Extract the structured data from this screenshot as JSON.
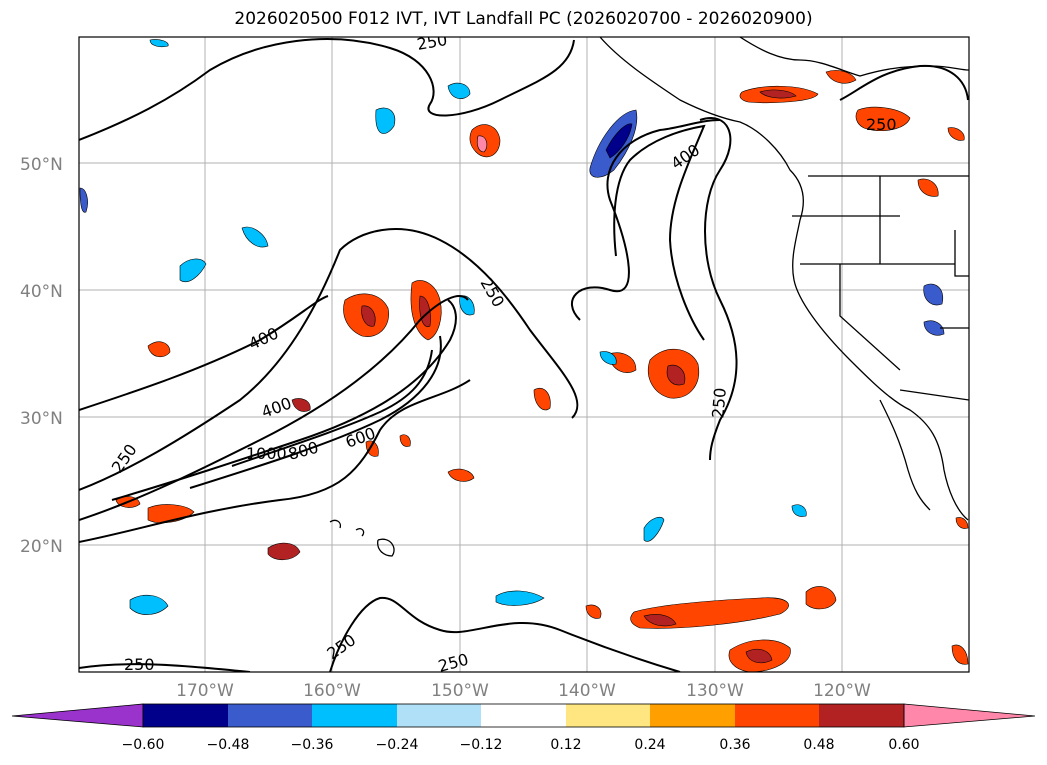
{
  "title": "2026020500 F012 IVT, IVT Landfall PC (2026020700 - 2026020900)",
  "map": {
    "lat_ticks": [
      "50°N",
      "40°N",
      "30°N",
      "20°N"
    ],
    "lon_ticks": [
      "170°W",
      "160°W",
      "150°W",
      "140°W",
      "130°W",
      "120°W"
    ],
    "contour_labels": [
      "250",
      "250",
      "400",
      "250",
      "400",
      "250",
      "400",
      "1000",
      "800",
      "600",
      "250",
      "250",
      "250",
      "250"
    ],
    "contour_color": "#000000",
    "coastline_color": "#000000",
    "grid_color": "#b0b0b0"
  },
  "colorbar": {
    "tick_labels": [
      "−0.60",
      "−0.48",
      "−0.36",
      "−0.24",
      "−0.12",
      "0.12",
      "0.24",
      "0.36",
      "0.48",
      "0.60"
    ],
    "colors": [
      "#9933cc",
      "#00008b",
      "#3a5bcc",
      "#00bfff",
      "#b0e0f8",
      "#ffffff",
      "#ffe680",
      "#ffa000",
      "#ff4500",
      "#b22222",
      "#ff88aa"
    ]
  }
}
